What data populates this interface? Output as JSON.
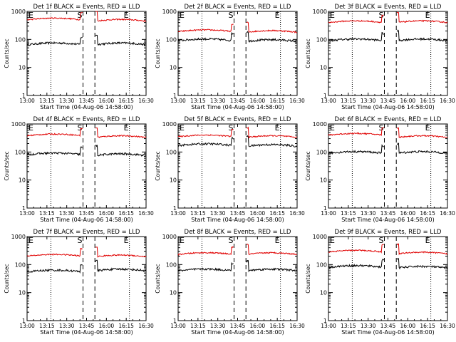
{
  "figure": {
    "background": "#ffffff",
    "colors": {
      "events": "#000000",
      "lld": "#e00000",
      "axes": "#000000"
    }
  },
  "chart_data": [
    {
      "type": "line",
      "title": "Det 1f BLACK = Events, RED = LLD",
      "xlabel": "Start Time (04-Aug-06 14:58:00)",
      "ylabel": "Counts/sec",
      "x_ticks": [
        "13:00",
        "13:15",
        "13:30",
        "13:45",
        "16:00",
        "16:15",
        "16:30"
      ],
      "y_scale": "log",
      "ylim": [
        1,
        1000
      ],
      "y_ticks": [
        "1",
        "10",
        "100",
        "1000"
      ],
      "markers": [
        "E",
        "S",
        "E"
      ],
      "series": [
        {
          "values_desc": "black",
          "level_before": 65,
          "level_after": 65
        },
        {
          "values_desc": "red",
          "level_before": 500,
          "level_after": 450
        }
      ]
    },
    {
      "type": "line",
      "title": "Det 2f BLACK = Events, RED = LLD",
      "xlabel": "Start Time (04-Aug-06 14:58:00)",
      "ylabel": "Counts/sec",
      "x_ticks": [
        "13:00",
        "13:15",
        "13:30",
        "13:45",
        "16:00",
        "16:15",
        "16:30"
      ],
      "y_scale": "log",
      "ylim": [
        1,
        1000
      ],
      "y_ticks": [
        "1",
        "10",
        "100",
        "1000"
      ],
      "markers": [
        "E",
        "S",
        "E"
      ],
      "series": [
        {
          "level_before": 90,
          "level_after": 85
        },
        {
          "level_before": 190,
          "level_after": 180
        }
      ]
    },
    {
      "type": "line",
      "title": "Det 3f BLACK = Events, RED = LLD",
      "xlabel": "Start Time (04-Aug-06 14:58:00)",
      "ylabel": "Counts/sec",
      "x_ticks": [
        "13:00",
        "13:15",
        "13:30",
        "13:45",
        "16:00",
        "16:15",
        "16:30"
      ],
      "y_scale": "log",
      "ylim": [
        1,
        1000
      ],
      "y_ticks": [
        "1",
        "10",
        "100",
        "1000"
      ],
      "markers": [
        "E",
        "S",
        "E"
      ],
      "series": [
        {
          "level_before": 90,
          "level_after": 90
        },
        {
          "level_before": 400,
          "level_after": 400
        }
      ]
    },
    {
      "type": "line",
      "title": "Det 4f BLACK = Events, RED = LLD",
      "xlabel": "Start Time (04-Aug-06 14:58:00)",
      "ylabel": "Counts/sec",
      "x_ticks": [
        "13:00",
        "13:15",
        "13:30",
        "13:45",
        "16:00",
        "16:15",
        "16:30"
      ],
      "y_scale": "log",
      "ylim": [
        1,
        1000
      ],
      "y_ticks": [
        "1",
        "10",
        "100",
        "1000"
      ],
      "markers": [
        "E",
        "S",
        "E"
      ],
      "series": [
        {
          "level_before": 80,
          "level_after": 75
        },
        {
          "level_before": 380,
          "level_after": 330
        }
      ]
    },
    {
      "type": "line",
      "title": "Det 5f BLACK = Events, RED = LLD",
      "xlabel": "Start Time (04-Aug-06 14:58:00)",
      "ylabel": "Counts/sec",
      "x_ticks": [
        "13:00",
        "13:15",
        "13:30",
        "13:45",
        "16:00",
        "16:15",
        "16:30"
      ],
      "y_scale": "log",
      "ylim": [
        1,
        1000
      ],
      "y_ticks": [
        "1",
        "10",
        "100",
        "1000"
      ],
      "markers": [
        "E",
        "S",
        "E"
      ],
      "series": [
        {
          "level_before": 170,
          "level_after": 160
        },
        {
          "level_before": 350,
          "level_after": 330
        }
      ]
    },
    {
      "type": "line",
      "title": "Det 6f BLACK = Events, RED = LLD",
      "xlabel": "Start Time (04-Aug-06 14:58:00)",
      "ylabel": "Counts/sec",
      "x_ticks": [
        "13:00",
        "13:15",
        "13:30",
        "13:45",
        "16:00",
        "16:15",
        "16:30"
      ],
      "y_scale": "log",
      "ylim": [
        1,
        1000
      ],
      "y_ticks": [
        "1",
        "10",
        "100",
        "1000"
      ],
      "markers": [
        "E",
        "S",
        "E"
      ],
      "series": [
        {
          "level_before": 90,
          "level_after": 90
        },
        {
          "level_before": 400,
          "level_after": 330
        }
      ]
    },
    {
      "type": "line",
      "title": "Det 7f BLACK = Events, RED = LLD",
      "xlabel": "Start Time (04-Aug-06 14:58:00)",
      "ylabel": "Counts/sec",
      "x_ticks": [
        "13:00",
        "13:15",
        "13:30",
        "13:45",
        "16:00",
        "16:15",
        "16:30"
      ],
      "y_scale": "log",
      "ylim": [
        1,
        1000
      ],
      "y_ticks": [
        "1",
        "10",
        "100",
        "1000"
      ],
      "markers": [
        "E",
        "S",
        "E"
      ],
      "series": [
        {
          "level_before": 55,
          "level_after": 60
        },
        {
          "level_before": 200,
          "level_after": 190
        }
      ]
    },
    {
      "type": "line",
      "title": "Det 8f BLACK = Events, RED = LLD",
      "xlabel": "Start Time (04-Aug-06 14:58:00)",
      "ylabel": "Counts/sec",
      "x_ticks": [
        "13:00",
        "13:15",
        "13:30",
        "13:45",
        "16:00",
        "16:15",
        "16:30"
      ],
      "y_scale": "log",
      "ylim": [
        1,
        1000
      ],
      "y_ticks": [
        "1",
        "10",
        "100",
        "1000"
      ],
      "markers": [
        "E",
        "S",
        "E"
      ],
      "series": [
        {
          "level_before": 60,
          "level_after": 60
        },
        {
          "level_before": 230,
          "level_after": 230
        }
      ]
    },
    {
      "type": "line",
      "title": "Det 9f BLACK = Events, RED = LLD",
      "xlabel": "Start Time (04-Aug-06 14:58:00)",
      "ylabel": "Counts/sec",
      "x_ticks": [
        "13:00",
        "13:15",
        "13:30",
        "13:45",
        "16:00",
        "16:15",
        "16:30"
      ],
      "y_scale": "log",
      "ylim": [
        1,
        1000
      ],
      "y_ticks": [
        "1",
        "10",
        "100",
        "1000"
      ],
      "markers": [
        "E",
        "S",
        "E"
      ],
      "series": [
        {
          "level_before": 80,
          "level_after": 75
        },
        {
          "level_before": 280,
          "level_after": 240
        }
      ]
    }
  ]
}
